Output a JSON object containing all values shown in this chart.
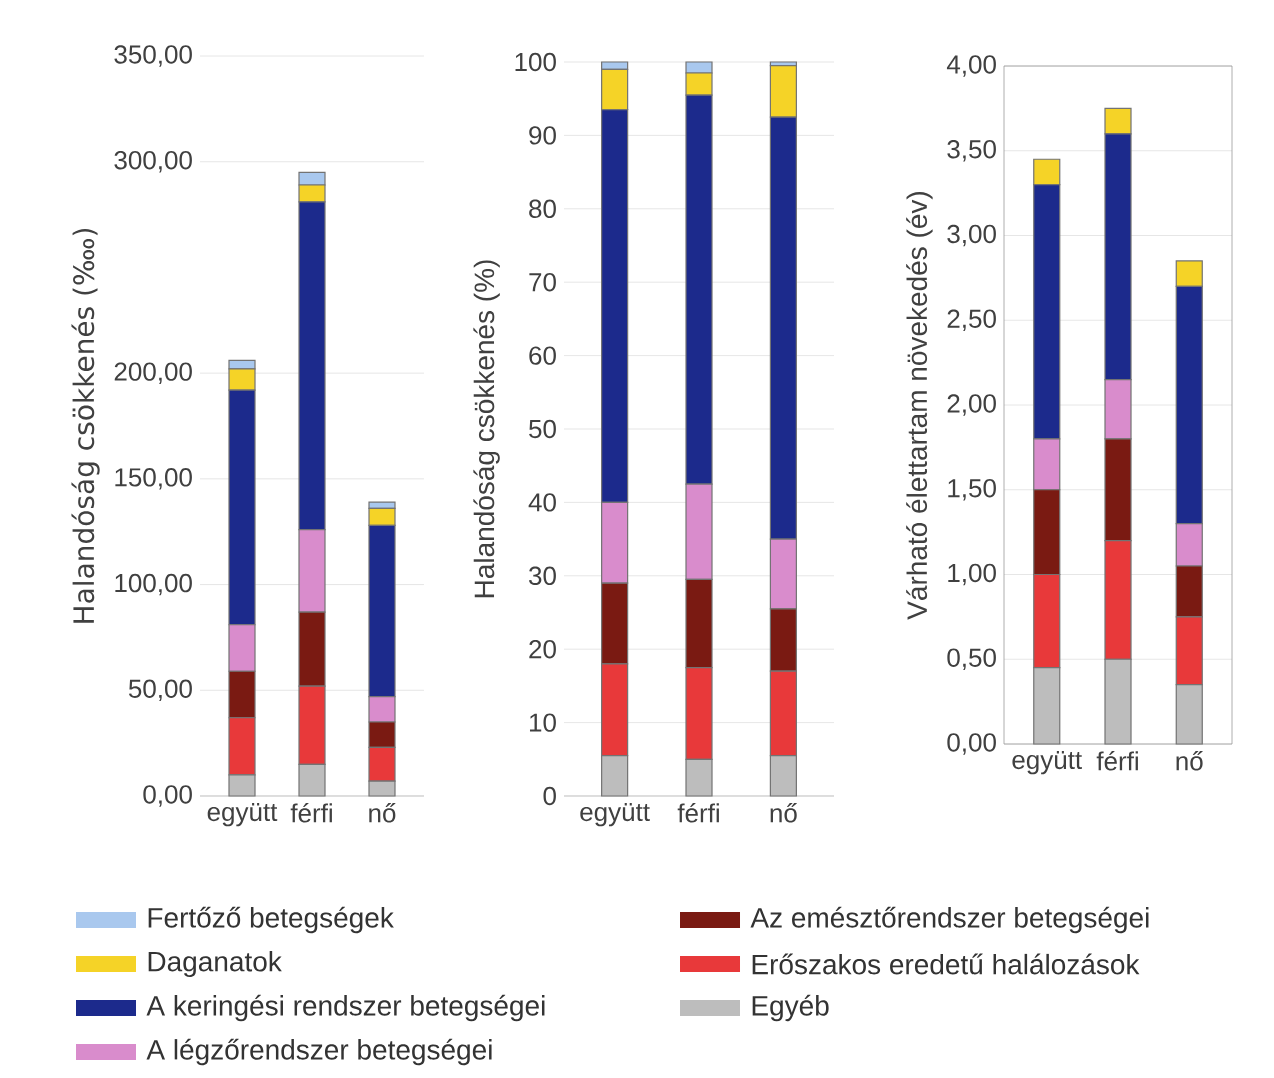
{
  "chart_data": [
    {
      "type": "bar",
      "stacked": true,
      "grid": "y",
      "legend": "bottom",
      "ylabel": "Halandóság csökkenés (‱)",
      "categories": [
        "együtt",
        "férfi",
        "nő"
      ],
      "ylim": [
        0,
        350
      ],
      "yticks": [
        {
          "value": 0,
          "label": "0,00"
        },
        {
          "value": 50,
          "label": "50,00"
        },
        {
          "value": 100,
          "label": "100,00"
        },
        {
          "value": 150,
          "label": "150,00"
        },
        {
          "value": 200,
          "label": "200,00"
        },
        {
          "value": 300,
          "label": "300,00"
        },
        {
          "value": 350,
          "label": "350,00"
        }
      ],
      "series": [
        {
          "name": "Egyéb",
          "color": "#bdbdbd",
          "values": [
            10,
            15,
            7
          ]
        },
        {
          "name": "Erőszakos eredetű halálozások",
          "color": "#e8393a",
          "values": [
            27,
            37,
            16
          ]
        },
        {
          "name": "Az emésztőrendszer betegségei",
          "color": "#7a1a12",
          "values": [
            22,
            35,
            12
          ]
        },
        {
          "name": "A légzőrendszer betegségei",
          "color": "#d98ccc",
          "values": [
            22,
            39,
            12
          ]
        },
        {
          "name": "A keringési rendszer betegségei",
          "color": "#1c2a8c",
          "values": [
            111,
            155,
            81
          ]
        },
        {
          "name": "Daganatok",
          "color": "#f5d327",
          "values": [
            10,
            8,
            8
          ]
        },
        {
          "name": "Fertőző betegségek",
          "color": "#a9c8ee",
          "values": [
            4,
            6,
            3
          ]
        }
      ]
    },
    {
      "type": "bar",
      "stacked": true,
      "grid": "y",
      "ylabel": "Halandóság csökkenés (%)",
      "categories": [
        "együtt",
        "férfi",
        "nő"
      ],
      "ylim": [
        0,
        100
      ],
      "yticks": [
        0,
        10,
        20,
        30,
        40,
        50,
        60,
        70,
        80,
        90,
        100
      ],
      "series": [
        {
          "color": "#bdbdbd",
          "values": [
            5.5,
            5,
            5.5
          ]
        },
        {
          "color": "#e8393a",
          "values": [
            12.5,
            12.5,
            11.5
          ]
        },
        {
          "color": "#7a1a12",
          "values": [
            11,
            12,
            8.5
          ]
        },
        {
          "color": "#d98ccc",
          "values": [
            11,
            13,
            9.5
          ]
        },
        {
          "color": "#1c2a8c",
          "values": [
            53.5,
            53,
            57.5
          ]
        },
        {
          "color": "#f5d327",
          "values": [
            5.5,
            3,
            7
          ]
        },
        {
          "color": "#a9c8ee",
          "values": [
            1,
            1.5,
            0.5
          ]
        }
      ]
    },
    {
      "type": "bar",
      "stacked": true,
      "grid": "y",
      "ylabel": "Várható élettartam növekedés (év)",
      "categories": [
        "együtt",
        "férfi",
        "nő"
      ],
      "ylim": [
        0,
        4
      ],
      "yticks": [
        {
          "value": 0,
          "label": "0,00"
        },
        {
          "value": 0.5,
          "label": "0,50"
        },
        {
          "value": 1,
          "label": "1,00"
        },
        {
          "value": 1.5,
          "label": "1,50"
        },
        {
          "value": 2,
          "label": "2,00"
        },
        {
          "value": 2.5,
          "label": "2,50"
        },
        {
          "value": 3,
          "label": "3,00"
        },
        {
          "value": 3.5,
          "label": "3,50"
        },
        {
          "value": 4,
          "label": "4,00"
        }
      ],
      "series": [
        {
          "color": "#bdbdbd",
          "values": [
            0.45,
            0.5,
            0.35
          ]
        },
        {
          "color": "#e8393a",
          "values": [
            0.55,
            0.7,
            0.4
          ]
        },
        {
          "color": "#7a1a12",
          "values": [
            0.5,
            0.6,
            0.3
          ]
        },
        {
          "color": "#d98ccc",
          "values": [
            0.3,
            0.35,
            0.25
          ]
        },
        {
          "color": "#1c2a8c",
          "values": [
            1.5,
            1.45,
            1.4
          ]
        },
        {
          "color": "#f5d327",
          "values": [
            0.15,
            0.15,
            0.15
          ]
        }
      ]
    }
  ]
}
